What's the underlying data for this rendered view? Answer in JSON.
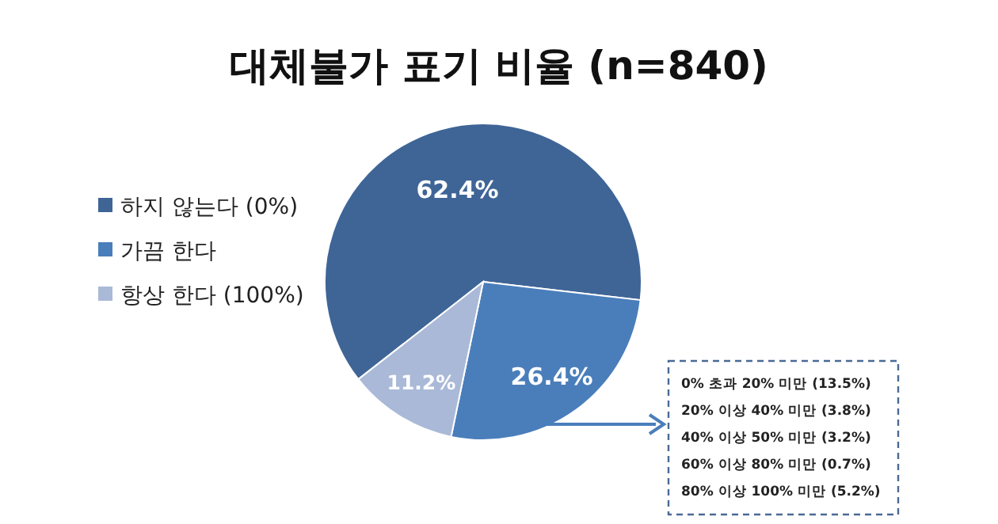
{
  "chart_data": {
    "type": "pie",
    "title": "대체불가 표기 비율 (n=840)",
    "categories": [
      "하지 않는다 (0%)",
      "가끔 한다",
      "항상 한다 (100%)"
    ],
    "values": [
      62.4,
      26.4,
      11.2
    ],
    "value_labels": [
      "62.4%",
      "26.4%",
      "11.2%"
    ],
    "colors": [
      "#3f6597",
      "#4a7ebb",
      "#a9b9d7"
    ],
    "legend": "left",
    "annotations": [
      "0% 초과 20% 미만 (13.5%)",
      "20% 이상 40% 미만 (3.8%)",
      "40% 이상 50% 미만 (3.2%)",
      "60% 이상 80% 미만 (0.7%)",
      "80% 이상 100% 미만 (5.2%)"
    ]
  }
}
